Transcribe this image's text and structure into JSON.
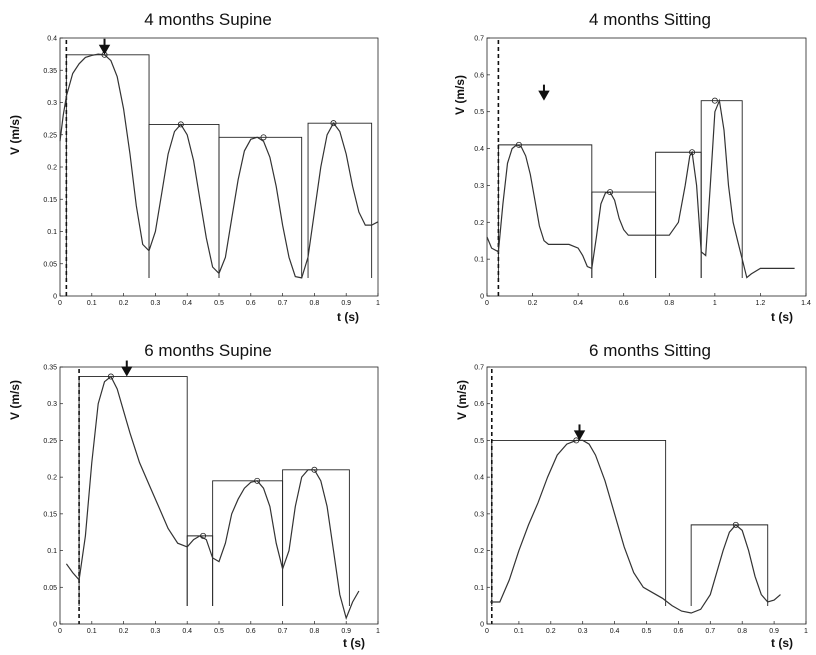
{
  "chart_data": [
    {
      "type": "line",
      "title": "4 months Supine",
      "ylabel": "V (m/s)",
      "xlabel": "t (s)",
      "xlim": [
        0,
        1.0
      ],
      "ylim": [
        0,
        0.4
      ],
      "xticks": [
        "0",
        "0.1",
        "0.2",
        "0.3",
        "0.4",
        "0.5",
        "0.6",
        "0.7",
        "0.8",
        "0.9",
        "1"
      ],
      "yticks": [
        "0",
        "0.05",
        "0.1",
        "0.15",
        "0.2",
        "0.25",
        "0.3",
        "0.35",
        "0.4"
      ],
      "onset": 0.02,
      "arrow_t": 0.14,
      "series": [
        {
          "x": [
            0.0,
            0.01,
            0.02,
            0.04,
            0.06,
            0.08,
            0.1,
            0.12,
            0.14,
            0.16,
            0.18,
            0.2,
            0.22,
            0.24,
            0.26,
            0.28,
            0.3,
            0.32,
            0.34,
            0.36,
            0.38,
            0.4,
            0.42,
            0.44,
            0.46,
            0.48,
            0.5,
            0.52,
            0.54,
            0.56,
            0.58,
            0.6,
            0.62,
            0.64,
            0.66,
            0.68,
            0.7,
            0.72,
            0.74,
            0.76,
            0.78,
            0.8,
            0.82,
            0.84,
            0.86,
            0.88,
            0.9,
            0.92,
            0.94,
            0.96,
            0.98,
            1.0
          ],
          "values": [
            0.24,
            0.28,
            0.31,
            0.345,
            0.36,
            0.37,
            0.373,
            0.375,
            0.374,
            0.365,
            0.34,
            0.29,
            0.22,
            0.14,
            0.08,
            0.07,
            0.1,
            0.16,
            0.22,
            0.255,
            0.266,
            0.25,
            0.21,
            0.15,
            0.09,
            0.045,
            0.035,
            0.06,
            0.12,
            0.18,
            0.225,
            0.243,
            0.246,
            0.24,
            0.215,
            0.17,
            0.11,
            0.06,
            0.03,
            0.028,
            0.06,
            0.13,
            0.2,
            0.25,
            0.268,
            0.255,
            0.22,
            0.17,
            0.13,
            0.11,
            0.11,
            0.115
          ]
        }
      ],
      "peaks": [
        [
          0.14,
          0.374
        ],
        [
          0.38,
          0.266
        ],
        [
          0.64,
          0.246
        ],
        [
          0.86,
          0.268
        ]
      ],
      "segments": [
        [
          0.02,
          0.28,
          0.374
        ],
        [
          0.28,
          0.5,
          0.266
        ],
        [
          0.5,
          0.76,
          0.246
        ],
        [
          0.78,
          0.98,
          0.268
        ]
      ]
    },
    {
      "type": "line",
      "title": "4 months Sitting",
      "ylabel": "V (m/s)",
      "xlabel": "t (s)",
      "xlim": [
        0,
        1.4
      ],
      "ylim": [
        0,
        0.7
      ],
      "xticks": [
        "0",
        "0.2",
        "0.4",
        "0.6",
        "0.8",
        "1",
        "1.2",
        "1.4"
      ],
      "yticks": [
        "0",
        "0.1",
        "0.2",
        "0.3",
        "0.4",
        "0.5",
        "0.6",
        "0.7"
      ],
      "onset": 0.05,
      "arrow_t": 0.25,
      "series": [
        {
          "x": [
            0.0,
            0.02,
            0.05,
            0.07,
            0.09,
            0.11,
            0.13,
            0.15,
            0.17,
            0.19,
            0.21,
            0.23,
            0.25,
            0.27,
            0.3,
            0.33,
            0.36,
            0.4,
            0.42,
            0.44,
            0.46,
            0.48,
            0.5,
            0.52,
            0.54,
            0.56,
            0.58,
            0.6,
            0.62,
            0.65,
            0.7,
            0.74,
            0.8,
            0.84,
            0.87,
            0.89,
            0.9,
            0.92,
            0.94,
            0.96,
            0.98,
            1.0,
            1.02,
            1.04,
            1.06,
            1.08,
            1.1,
            1.12,
            1.14,
            1.16,
            1.2,
            1.3,
            1.35
          ],
          "values": [
            0.16,
            0.13,
            0.12,
            0.25,
            0.36,
            0.4,
            0.41,
            0.405,
            0.38,
            0.33,
            0.26,
            0.19,
            0.15,
            0.14,
            0.14,
            0.14,
            0.14,
            0.13,
            0.11,
            0.08,
            0.075,
            0.16,
            0.25,
            0.28,
            0.282,
            0.26,
            0.21,
            0.18,
            0.165,
            0.165,
            0.165,
            0.165,
            0.165,
            0.2,
            0.3,
            0.38,
            0.39,
            0.3,
            0.12,
            0.11,
            0.3,
            0.5,
            0.53,
            0.45,
            0.3,
            0.2,
            0.15,
            0.1,
            0.05,
            0.06,
            0.075,
            0.075,
            0.075
          ]
        }
      ],
      "peaks": [
        [
          0.14,
          0.41
        ],
        [
          0.54,
          0.282
        ],
        [
          0.9,
          0.39
        ],
        [
          1.0,
          0.53
        ]
      ],
      "segments": [
        [
          0.05,
          0.46,
          0.41
        ],
        [
          0.46,
          0.74,
          0.282
        ],
        [
          0.74,
          0.94,
          0.39
        ],
        [
          0.94,
          1.12,
          0.53
        ]
      ]
    },
    {
      "type": "line",
      "title": "6 months Supine",
      "ylabel": "V (m/s)",
      "xlabel": "t (s)",
      "xlim": [
        0,
        1.0
      ],
      "ylim": [
        0,
        0.35
      ],
      "xticks": [
        "0",
        "0.1",
        "0.2",
        "0.3",
        "0.4",
        "0.5",
        "0.6",
        "0.7",
        "0.8",
        "0.9",
        "1"
      ],
      "yticks": [
        "0",
        "0.05",
        "0.1",
        "0.15",
        "0.2",
        "0.25",
        "0.3",
        "0.35"
      ],
      "onset": 0.06,
      "arrow_t": 0.21,
      "series": [
        {
          "x": [
            0.02,
            0.04,
            0.06,
            0.08,
            0.1,
            0.12,
            0.14,
            0.16,
            0.18,
            0.2,
            0.22,
            0.25,
            0.28,
            0.31,
            0.34,
            0.37,
            0.4,
            0.42,
            0.44,
            0.46,
            0.48,
            0.5,
            0.52,
            0.54,
            0.56,
            0.58,
            0.6,
            0.62,
            0.64,
            0.66,
            0.68,
            0.7,
            0.72,
            0.74,
            0.76,
            0.78,
            0.8,
            0.82,
            0.84,
            0.86,
            0.88,
            0.9,
            0.92,
            0.94
          ],
          "values": [
            0.082,
            0.07,
            0.06,
            0.12,
            0.22,
            0.3,
            0.33,
            0.337,
            0.32,
            0.29,
            0.26,
            0.22,
            0.19,
            0.16,
            0.13,
            0.11,
            0.105,
            0.115,
            0.12,
            0.115,
            0.09,
            0.085,
            0.11,
            0.15,
            0.17,
            0.185,
            0.193,
            0.195,
            0.185,
            0.16,
            0.11,
            0.075,
            0.1,
            0.16,
            0.2,
            0.21,
            0.21,
            0.195,
            0.16,
            0.1,
            0.04,
            0.008,
            0.03,
            0.045
          ]
        }
      ],
      "peaks": [
        [
          0.16,
          0.337
        ],
        [
          0.45,
          0.12
        ],
        [
          0.62,
          0.195
        ],
        [
          0.8,
          0.21
        ]
      ],
      "segments": [
        [
          0.06,
          0.4,
          0.337
        ],
        [
          0.4,
          0.48,
          0.12
        ],
        [
          0.48,
          0.7,
          0.195
        ],
        [
          0.7,
          0.91,
          0.21
        ]
      ]
    },
    {
      "type": "line",
      "title": "6 months Sitting",
      "ylabel": "V (m/s)",
      "xlabel": "t (s)",
      "xlim": [
        0,
        1.0
      ],
      "ylim": [
        0,
        0.7
      ],
      "xticks": [
        "0",
        "0.1",
        "0.2",
        "0.3",
        "0.4",
        "0.5",
        "0.6",
        "0.7",
        "0.8",
        "0.9",
        "1"
      ],
      "yticks": [
        "0",
        "0.1",
        "0.2",
        "0.3",
        "0.4",
        "0.5",
        "0.6",
        "0.7"
      ],
      "onset": 0.015,
      "arrow_t": 0.29,
      "series": [
        {
          "x": [
            0.01,
            0.04,
            0.07,
            0.1,
            0.13,
            0.16,
            0.19,
            0.22,
            0.25,
            0.28,
            0.3,
            0.32,
            0.34,
            0.37,
            0.4,
            0.43,
            0.46,
            0.49,
            0.52,
            0.55,
            0.58,
            0.61,
            0.64,
            0.67,
            0.7,
            0.72,
            0.74,
            0.76,
            0.78,
            0.8,
            0.82,
            0.84,
            0.86,
            0.88,
            0.9,
            0.92
          ],
          "values": [
            0.06,
            0.06,
            0.12,
            0.2,
            0.27,
            0.33,
            0.4,
            0.46,
            0.49,
            0.5,
            0.5,
            0.49,
            0.46,
            0.39,
            0.3,
            0.21,
            0.14,
            0.1,
            0.085,
            0.07,
            0.05,
            0.035,
            0.03,
            0.04,
            0.08,
            0.14,
            0.2,
            0.25,
            0.27,
            0.255,
            0.2,
            0.13,
            0.08,
            0.06,
            0.065,
            0.08
          ]
        }
      ],
      "peaks": [
        [
          0.28,
          0.5
        ],
        [
          0.78,
          0.27
        ]
      ],
      "segments": [
        [
          0.015,
          0.56,
          0.5
        ],
        [
          0.64,
          0.88,
          0.27
        ]
      ]
    }
  ]
}
